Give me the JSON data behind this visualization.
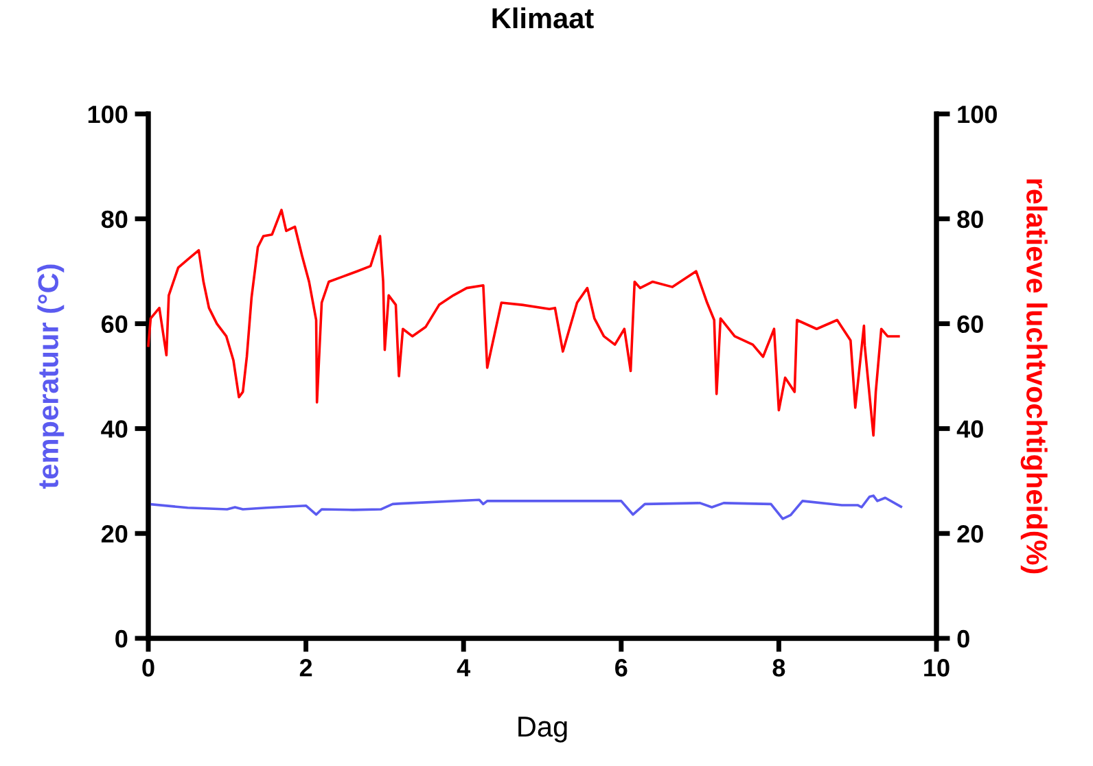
{
  "chart_data": {
    "type": "line",
    "title": "Klimaat",
    "xlabel": "Dag",
    "ylabel": "temperatuur (°C)",
    "y2label": "relatieve luchtvochtigheid(%)",
    "xlim": [
      0,
      10
    ],
    "xticks": [
      0,
      2,
      4,
      6,
      8,
      10
    ],
    "ylim": [
      0,
      100
    ],
    "yticks": [
      0,
      20,
      40,
      60,
      80,
      100
    ],
    "y2lim": [
      0,
      100
    ],
    "y2ticks": [
      0,
      20,
      40,
      60,
      80,
      100
    ],
    "grid": false,
    "legend": false,
    "series": [
      {
        "color": "#5b5bf0",
        "axis": "y",
        "x": [
          0,
          0.5,
          1.0,
          1.1,
          1.2,
          1.5,
          2.0,
          2.13,
          2.2,
          2.6,
          2.95,
          3.1,
          3.2,
          4.2,
          4.25,
          4.3,
          5,
          6.0,
          6.15,
          6.3,
          7.0,
          7.15,
          7.3,
          7.9,
          8.05,
          8.15,
          8.3,
          8.8,
          9.0,
          9.05,
          9.15,
          9.2,
          9.25,
          9.35,
          9.55
        ],
        "values": [
          25.6,
          24.9,
          24.6,
          25.0,
          24.6,
          24.9,
          25.3,
          23.6,
          24.6,
          24.5,
          24.6,
          25.6,
          25.7,
          26.4,
          25.6,
          26.2,
          26.2,
          26.2,
          23.6,
          25.6,
          25.8,
          25.0,
          25.8,
          25.6,
          22.8,
          23.5,
          26.2,
          25.4,
          25.4,
          25.0,
          27.0,
          27.2,
          26.2,
          26.8,
          25.1
        ]
      },
      {
        "color": "#ff0000",
        "axis": "y2",
        "x": [
          0,
          0.03,
          0.14,
          0.23,
          0.26,
          0.38,
          0.52,
          0.64,
          0.7,
          0.77,
          0.87,
          0.99,
          1.08,
          1.11,
          1.15,
          1.2,
          1.25,
          1.31,
          1.39,
          1.46,
          1.57,
          1.69,
          1.75,
          1.86,
          1.95,
          2.04,
          2.13,
          2.14,
          2.2,
          2.29,
          2.47,
          2.65,
          2.82,
          2.94,
          2.98,
          3.0,
          3.05,
          3.14,
          3.18,
          3.23,
          3.35,
          3.52,
          3.69,
          3.87,
          4.04,
          4.25,
          4.3,
          4.48,
          4.74,
          5.09,
          5.16,
          5.26,
          5.44,
          5.57,
          5.66,
          5.78,
          5.92,
          6.04,
          6.12,
          6.17,
          6.24,
          6.4,
          6.65,
          6.95,
          7.09,
          7.18,
          7.21,
          7.26,
          7.44,
          7.67,
          7.8,
          7.94,
          8.0,
          8.08,
          8.2,
          8.23,
          8.48,
          8.74,
          8.91,
          8.97,
          9.08,
          9.09,
          9.2,
          9.23,
          9.3,
          9.38,
          9.52
        ],
        "values": [
          55.8,
          61,
          63,
          54,
          65.4,
          70.7,
          72.5,
          74,
          68,
          63,
          60,
          57.6,
          53,
          50,
          46,
          47,
          53.7,
          65,
          74.6,
          76.7,
          77,
          81.7,
          77.7,
          78.5,
          73,
          68,
          60.7,
          45,
          64,
          68,
          69,
          70,
          71,
          76.7,
          68,
          55,
          65.4,
          63.6,
          50,
          59,
          57.6,
          59.4,
          63.6,
          65.4,
          66.8,
          67.3,
          51.6,
          64,
          63.6,
          62.8,
          63,
          54.7,
          64,
          66.8,
          61,
          57.6,
          56,
          59,
          51,
          68,
          66.8,
          68,
          67,
          70,
          64,
          60.7,
          46.6,
          61,
          57.6,
          56,
          53.7,
          59,
          43.5,
          49.7,
          47,
          60.7,
          59,
          60.7,
          56.8,
          44,
          59.6,
          55.8,
          38.7,
          47,
          59,
          57.6,
          57.6
        ]
      }
    ]
  }
}
